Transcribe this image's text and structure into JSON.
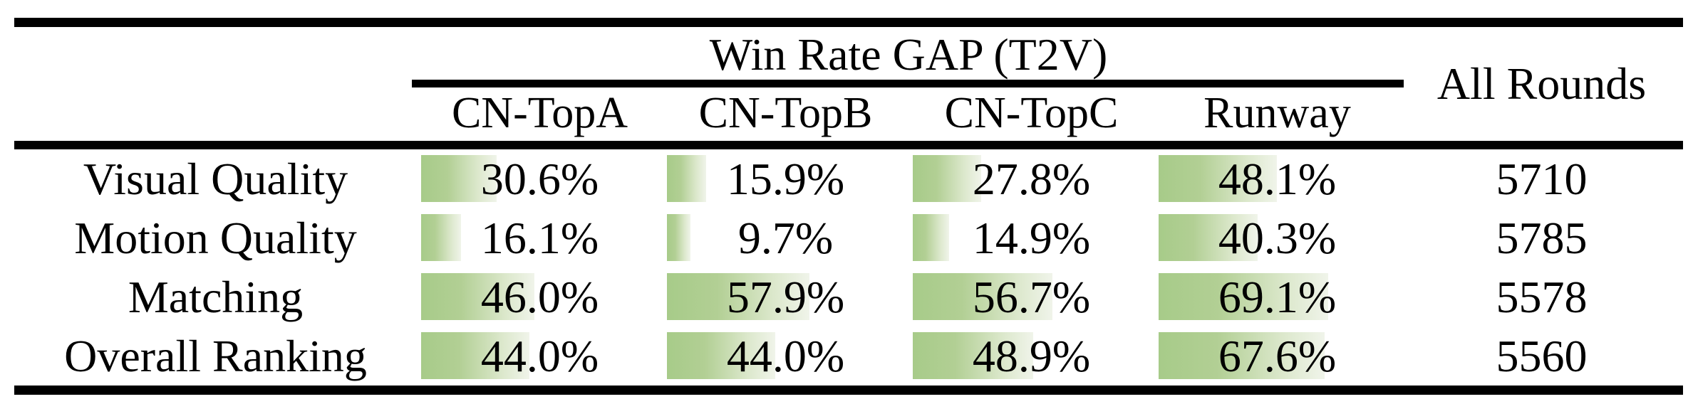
{
  "table": {
    "title": "Win Rate GAP (T2V)",
    "all_rounds_label": "All Rounds",
    "columns": [
      "CN-TopA",
      "CN-TopB",
      "CN-TopC",
      "Runway"
    ],
    "rows": [
      {
        "label": "Visual Quality",
        "cells": [
          {
            "pct": 30.6,
            "text": "30.6%"
          },
          {
            "pct": 15.9,
            "text": "15.9%"
          },
          {
            "pct": 27.8,
            "text": "27.8%"
          },
          {
            "pct": 48.1,
            "text": "48.1%"
          }
        ],
        "all_rounds": "5710"
      },
      {
        "label": "Motion Quality",
        "cells": [
          {
            "pct": 16.1,
            "text": "16.1%"
          },
          {
            "pct": 9.7,
            "text": "9.7%"
          },
          {
            "pct": 14.9,
            "text": "14.9%"
          },
          {
            "pct": 40.3,
            "text": "40.3%"
          }
        ],
        "all_rounds": "5785"
      },
      {
        "label": "Matching",
        "cells": [
          {
            "pct": 46.0,
            "text": "46.0%"
          },
          {
            "pct": 57.9,
            "text": "57.9%"
          },
          {
            "pct": 56.7,
            "text": "56.7%"
          },
          {
            "pct": 69.1,
            "text": "69.1%"
          }
        ],
        "all_rounds": "5578"
      },
      {
        "label": "Overall Ranking",
        "cells": [
          {
            "pct": 44.0,
            "text": "44.0%"
          },
          {
            "pct": 44.0,
            "text": "44.0%"
          },
          {
            "pct": 48.9,
            "text": "48.9%"
          },
          {
            "pct": 67.6,
            "text": "67.6%"
          }
        ],
        "all_rounds": "5560"
      }
    ],
    "colors": {
      "rule": "#000000",
      "text": "#000000",
      "bar_gradient_start": "#a7cb89",
      "bar_gradient_end": "#f0f4ea",
      "background": "#ffffff"
    }
  },
  "chart_data": {
    "type": "table",
    "title": "Win Rate GAP (T2V)",
    "categories": [
      "Visual Quality",
      "Motion Quality",
      "Matching",
      "Overall Ranking"
    ],
    "series": [
      {
        "name": "CN-TopA",
        "values": [
          30.6,
          16.1,
          46.0,
          44.0
        ]
      },
      {
        "name": "CN-TopB",
        "values": [
          15.9,
          9.7,
          57.9,
          44.0
        ]
      },
      {
        "name": "CN-TopC",
        "values": [
          27.8,
          14.9,
          56.7,
          48.9
        ]
      },
      {
        "name": "Runway",
        "values": [
          48.1,
          40.3,
          69.1,
          67.6
        ]
      },
      {
        "name": "All Rounds",
        "values": [
          5710,
          5785,
          5578,
          5560
        ]
      }
    ]
  }
}
